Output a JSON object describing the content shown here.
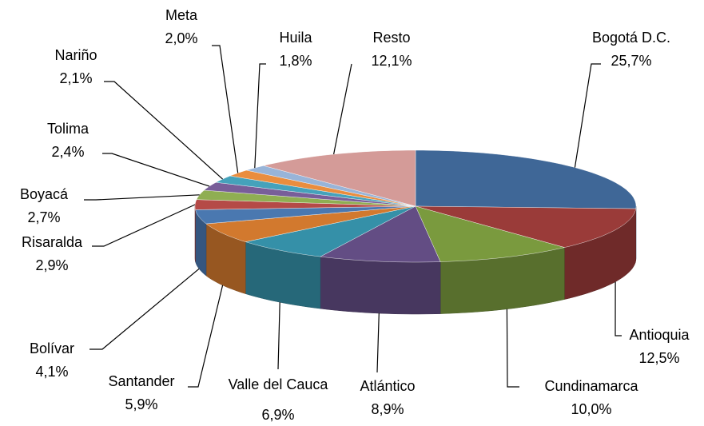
{
  "chart_data": {
    "type": "pie3d",
    "categories": [
      "Bogotá D.C.",
      "Antioquia",
      "Cundinamarca",
      "Atlántico",
      "Valle del Cauca",
      "Santander",
      "Bolívar",
      "Risaralda",
      "Boyacá",
      "Tolima",
      "Nariño",
      "Meta",
      "Huila",
      "Resto"
    ],
    "values": [
      25.7,
      12.5,
      10.0,
      8.9,
      6.9,
      5.9,
      4.1,
      2.9,
      2.7,
      2.4,
      2.1,
      2.0,
      1.8,
      12.1
    ],
    "value_labels": [
      "25,7%",
      "12,5%",
      "10,0%",
      "8,9%",
      "6,9%",
      "5,9%",
      "4,1%",
      "2,9%",
      "2,7%",
      "2,4%",
      "2,1%",
      "2,0%",
      "1,8%",
      "12,1%"
    ],
    "colors": [
      "#3f6797",
      "#9a3b39",
      "#7a9a3e",
      "#634d84",
      "#3590a8",
      "#d2792e",
      "#4a78b0",
      "#b54a47",
      "#8fae52",
      "#785e99",
      "#45a2bb",
      "#ea8d3e",
      "#98b4d8",
      "#d49b98"
    ]
  }
}
